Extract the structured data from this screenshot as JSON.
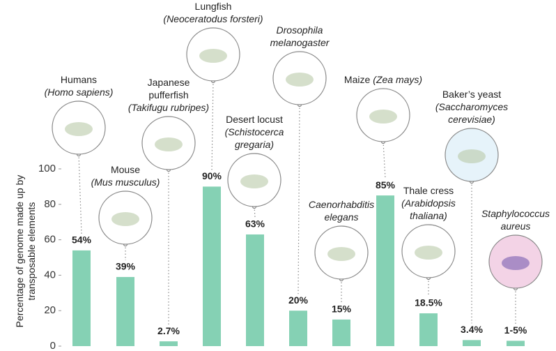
{
  "chart_data": {
    "type": "bar",
    "y_axis_label": "Percentage of genome made up by transposable elements",
    "categories": [
      "Humans",
      "Mouse",
      "Japanese pufferfish",
      "Lungfish",
      "Desert locust",
      null,
      null,
      "Maize",
      "Thale cress",
      "Baker’s yeast",
      null
    ],
    "scientific_names": [
      "(Homo sapiens)",
      "(Mus musculus)",
      "(Takifugu rubripes)",
      "(Neoceratodus forsteri)",
      "(Schistocerca gregaria)",
      "Drosophila melanogaster",
      "Caenorhabditis elegans",
      "(Zea mays)",
      "(Arabidopsis thaliana)",
      "(Saccharomyces cerevisiae)",
      "Staphylococcus aureus"
    ],
    "values": [
      54,
      39,
      2.7,
      90,
      63,
      20,
      15,
      85,
      18.5,
      3.4,
      3
    ],
    "value_labels": [
      "54%",
      "39%",
      "2.7%",
      "90%",
      "63%",
      "20%",
      "15%",
      "85%",
      "18.5%",
      "3.4%",
      "1-5%"
    ],
    "color": "#85d1b4",
    "ylim": [
      0,
      100
    ],
    "yticks": [
      0,
      20,
      40,
      60,
      80,
      100
    ],
    "grid": false
  }
}
